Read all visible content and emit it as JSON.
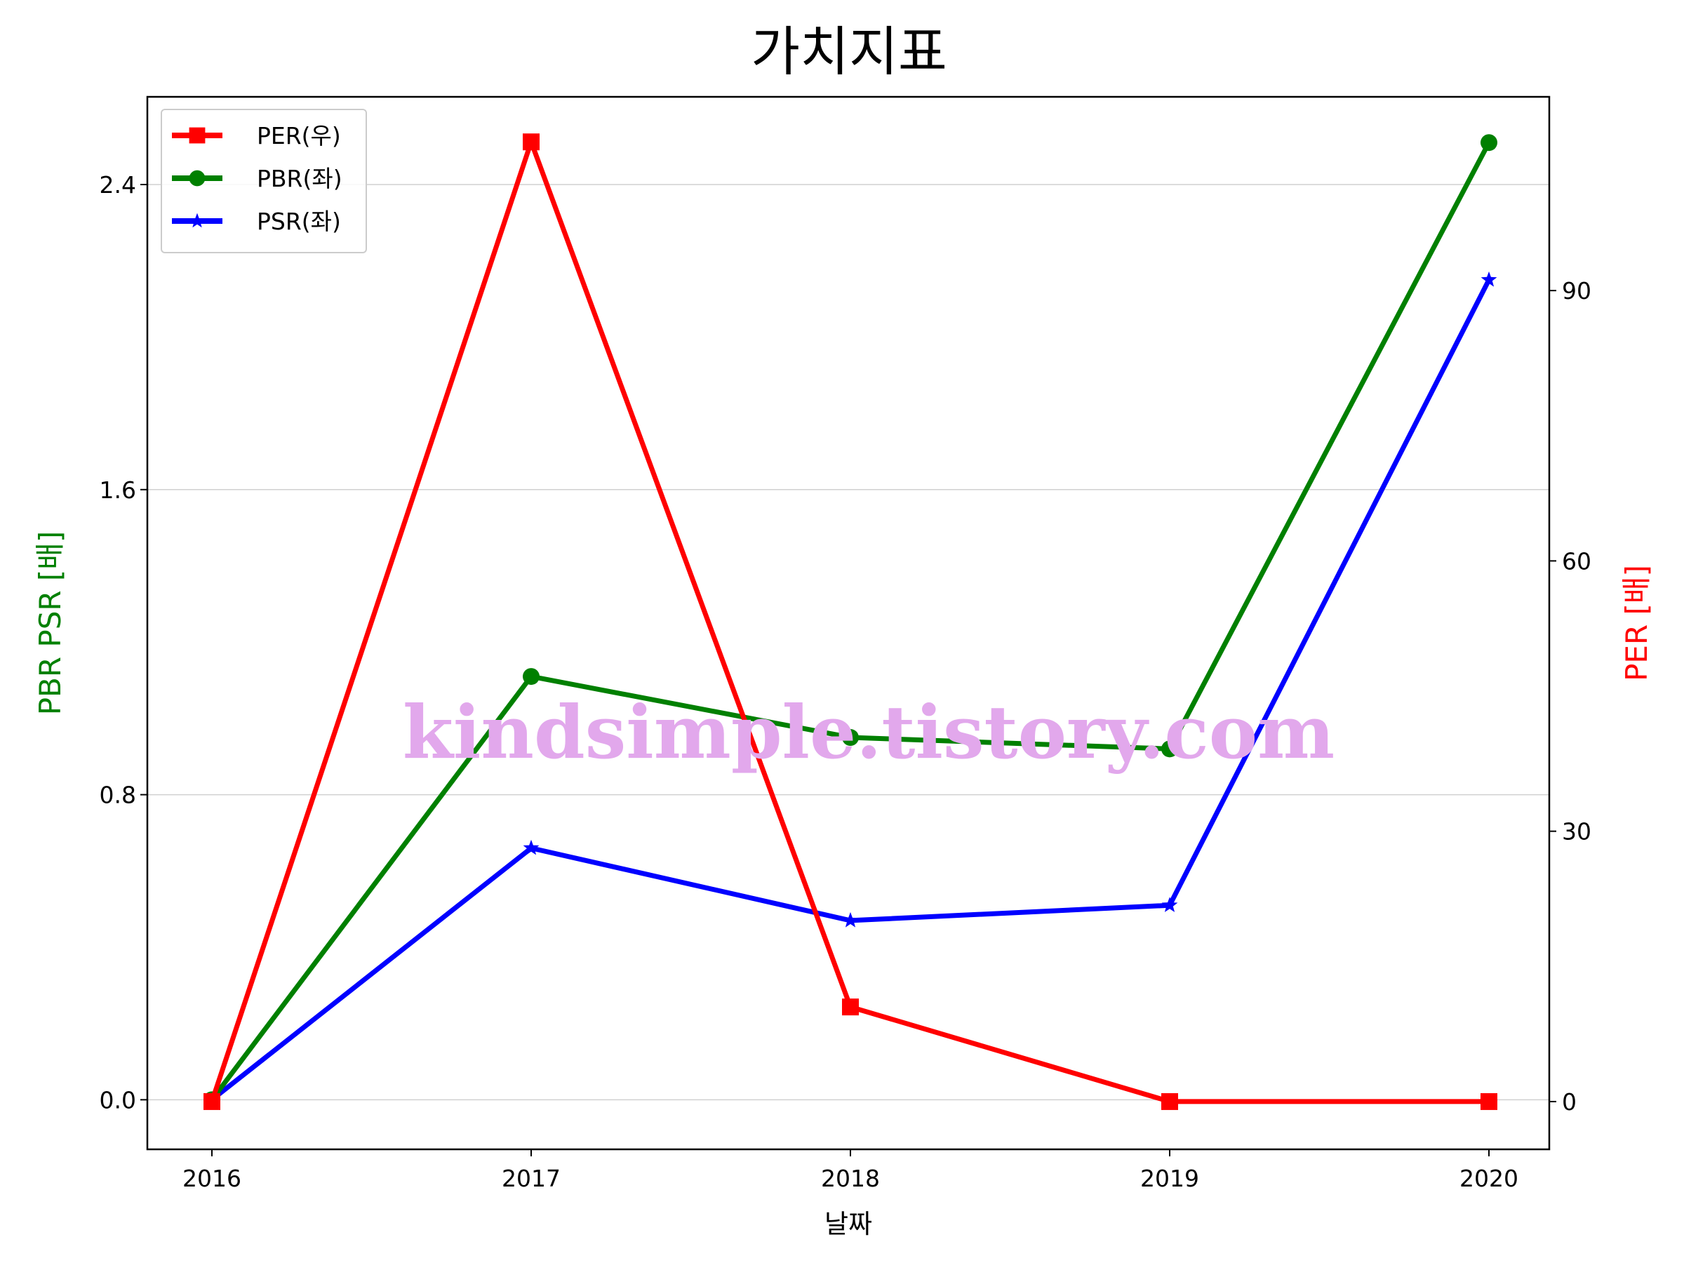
{
  "chart_data": {
    "type": "line",
    "title": "가치지표",
    "xlabel": "날짜",
    "ylabel_left": "PBR PSR [배]",
    "ylabel_right": "PER [배]",
    "categories": [
      "2016",
      "2017",
      "2018",
      "2019",
      "2020"
    ],
    "left_ylim": [
      -0.13,
      2.63
    ],
    "left_yticks": [
      "0.0",
      "0.8",
      "1.6",
      "2.4"
    ],
    "right_ylim": [
      -5.3,
      111.5
    ],
    "right_yticks": [
      "0",
      "30",
      "60",
      "90"
    ],
    "grid": "horizontal",
    "legend_placement": "top-left",
    "series": [
      {
        "name": "PER(우)",
        "axis": "right",
        "color": "#ff0000",
        "marker": "square",
        "values": [
          0,
          106.5,
          10.5,
          0,
          0
        ]
      },
      {
        "name": "PBR(좌)",
        "axis": "left",
        "color": "#008000",
        "marker": "circle",
        "values": [
          0,
          1.11,
          0.95,
          0.92,
          2.51
        ]
      },
      {
        "name": "PSR(좌)",
        "axis": "left",
        "color": "#0000ff",
        "marker": "star",
        "values": [
          0,
          0.66,
          0.47,
          0.51,
          2.15
        ]
      }
    ],
    "left_axis_color": "#008000",
    "right_axis_color": "#ff0000",
    "watermark": "kindsimple.tistory.com"
  }
}
